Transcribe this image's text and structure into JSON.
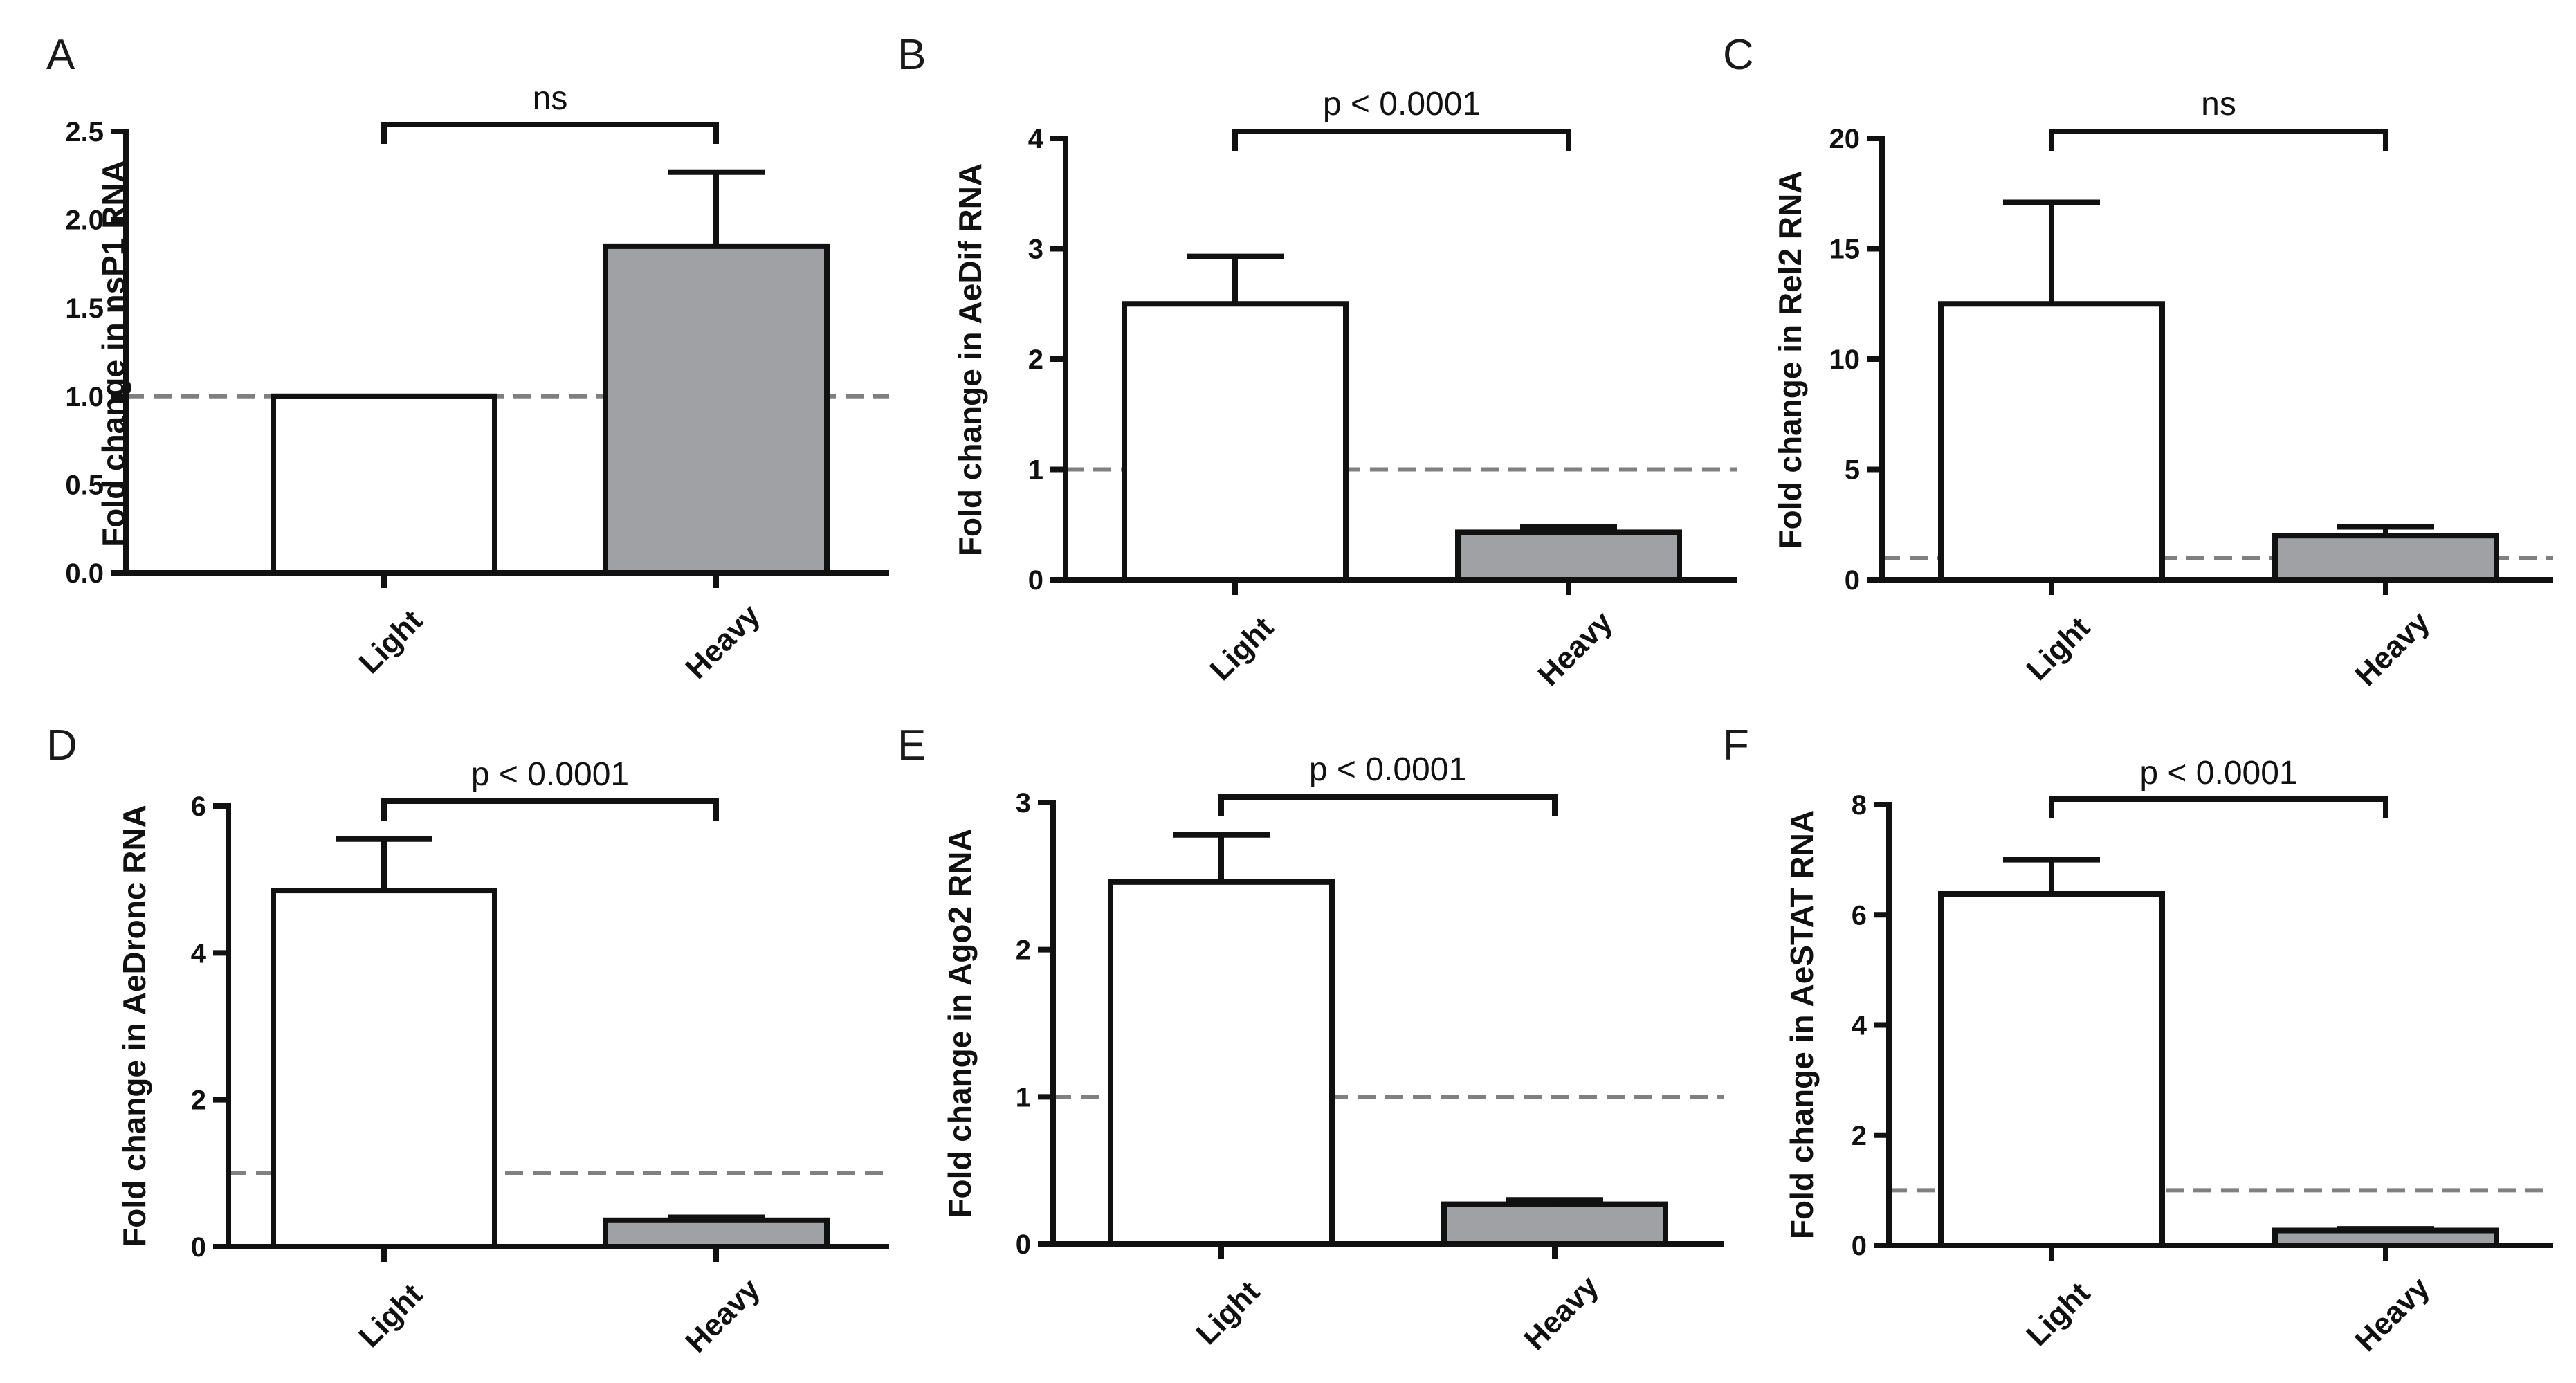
{
  "figure": {
    "colors": {
      "light_fill": "#ffffff",
      "heavy_fill": "#a0a1a5",
      "stroke": "#111111",
      "ref_line": "#808080"
    }
  },
  "chart_data": [
    {
      "panel": "A",
      "type": "bar",
      "ylabel": "Fold change in nsP1 RNA",
      "categories": [
        "Light",
        "Heavy"
      ],
      "values": [
        1.0,
        1.85
      ],
      "errors": [
        0,
        0.42
      ],
      "ylim": [
        0,
        2.5
      ],
      "yticks": [
        "0.0",
        "0.5",
        "1.0",
        "1.5",
        "2.0",
        "2.5"
      ],
      "reference_line": 1,
      "significance": "ns"
    },
    {
      "panel": "B",
      "type": "bar",
      "ylabel": "Fold change in AeDif RNA",
      "categories": [
        "Light",
        "Heavy"
      ],
      "values": [
        2.5,
        0.43
      ],
      "errors": [
        0.43,
        0.05
      ],
      "ylim": [
        0,
        4
      ],
      "yticks": [
        "0",
        "1",
        "2",
        "3",
        "4"
      ],
      "reference_line": 1,
      "significance": "p < 0.0001"
    },
    {
      "panel": "C",
      "type": "bar",
      "ylabel": "Fold change in Rel2 RNA",
      "categories": [
        "Light",
        "Heavy"
      ],
      "values": [
        12.5,
        2.0
      ],
      "errors": [
        4.6,
        0.4
      ],
      "ylim": [
        0,
        20
      ],
      "yticks": [
        "0",
        "5",
        "10",
        "15",
        "20"
      ],
      "reference_line": 1,
      "significance": "ns"
    },
    {
      "panel": "D",
      "type": "bar",
      "ylabel": "Fold change in AeDronc RNA",
      "categories": [
        "Light",
        "Heavy"
      ],
      "values": [
        4.85,
        0.36
      ],
      "errors": [
        0.7,
        0.04
      ],
      "ylim": [
        0,
        6
      ],
      "yticks": [
        "0",
        "2",
        "4",
        "6"
      ],
      "reference_line": 1,
      "significance": "p < 0.0001"
    },
    {
      "panel": "E",
      "type": "bar",
      "ylabel": "Fold change in Ago2  RNA",
      "categories": [
        "Light",
        "Heavy"
      ],
      "values": [
        2.46,
        0.27
      ],
      "errors": [
        0.32,
        0.03
      ],
      "ylim": [
        0,
        3
      ],
      "yticks": [
        "0",
        "1",
        "2",
        "3"
      ],
      "reference_line": 1,
      "significance": "p < 0.0001"
    },
    {
      "panel": "F",
      "type": "bar",
      "ylabel": "Fold change in AeSTAT RNA",
      "categories": [
        "Light",
        "Heavy"
      ],
      "values": [
        6.38,
        0.27
      ],
      "errors": [
        0.62,
        0.03
      ],
      "ylim": [
        0,
        8
      ],
      "yticks": [
        "0",
        "2",
        "4",
        "6",
        "8"
      ],
      "reference_line": 1,
      "significance": "p < 0.0001"
    }
  ]
}
